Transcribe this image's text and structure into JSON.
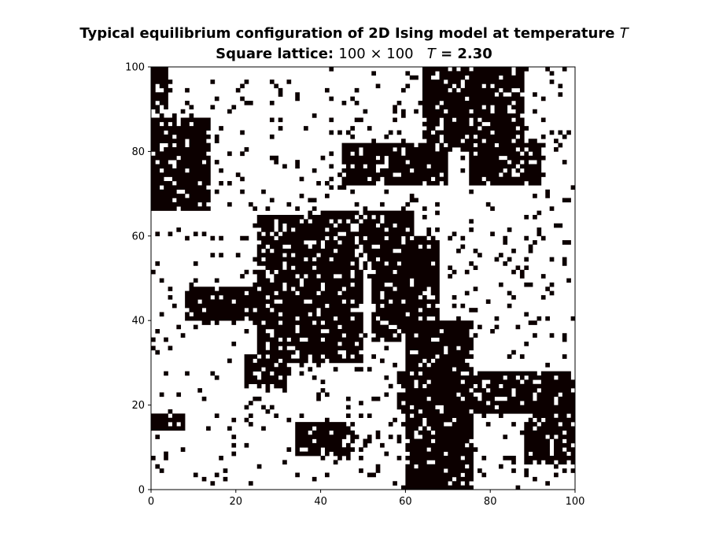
{
  "chart_data": {
    "type": "heatmap",
    "title": {
      "line1_text": "Typical equilibrium configuration of 2D Ising model at temperature ",
      "line1_symbol": "T",
      "line2_prefix": "Square lattice: ",
      "line2_size": "100 × 100",
      "line2_temp_symbol": "T",
      "line2_temp_value": " = 2.30"
    },
    "lattice_size": 100,
    "temperature": 2.3,
    "xlim": [
      0,
      100
    ],
    "ylim": [
      0,
      100
    ],
    "x_ticks": [
      "0",
      "20",
      "40",
      "60",
      "80",
      "100"
    ],
    "y_ticks": [
      "0",
      "20",
      "40",
      "60",
      "80",
      "100"
    ],
    "colors": {
      "spin_up": "#ffffff",
      "spin_down": "#0c0000"
    },
    "grid": false,
    "note_on_cells": "spin configuration reproduced as a coarse approximation of the visible domains",
    "domains": [
      {
        "x": [
          0,
          14
        ],
        "y": [
          66,
          88
        ]
      },
      {
        "x": [
          0,
          4
        ],
        "y": [
          90,
          100
        ]
      },
      {
        "x": [
          25,
          50
        ],
        "y": [
          30,
          65
        ]
      },
      {
        "x": [
          8,
          25
        ],
        "y": [
          40,
          48
        ]
      },
      {
        "x": [
          40,
          62
        ],
        "y": [
          52,
          66
        ]
      },
      {
        "x": [
          45,
          70
        ],
        "y": [
          72,
          82
        ]
      },
      {
        "x": [
          64,
          88
        ],
        "y": [
          80,
          100
        ]
      },
      {
        "x": [
          52,
          68
        ],
        "y": [
          35,
          60
        ]
      },
      {
        "x": [
          58,
          100
        ],
        "y": [
          18,
          28
        ]
      },
      {
        "x": [
          60,
          76
        ],
        "y": [
          0,
          40
        ]
      },
      {
        "x": [
          88,
          100
        ],
        "y": [
          6,
          24
        ]
      },
      {
        "x": [
          75,
          92
        ],
        "y": [
          72,
          82
        ]
      },
      {
        "x": [
          22,
          32
        ],
        "y": [
          24,
          32
        ]
      },
      {
        "x": [
          0,
          8
        ],
        "y": [
          14,
          18
        ]
      },
      {
        "x": [
          34,
          48
        ],
        "y": [
          8,
          16
        ]
      }
    ]
  }
}
